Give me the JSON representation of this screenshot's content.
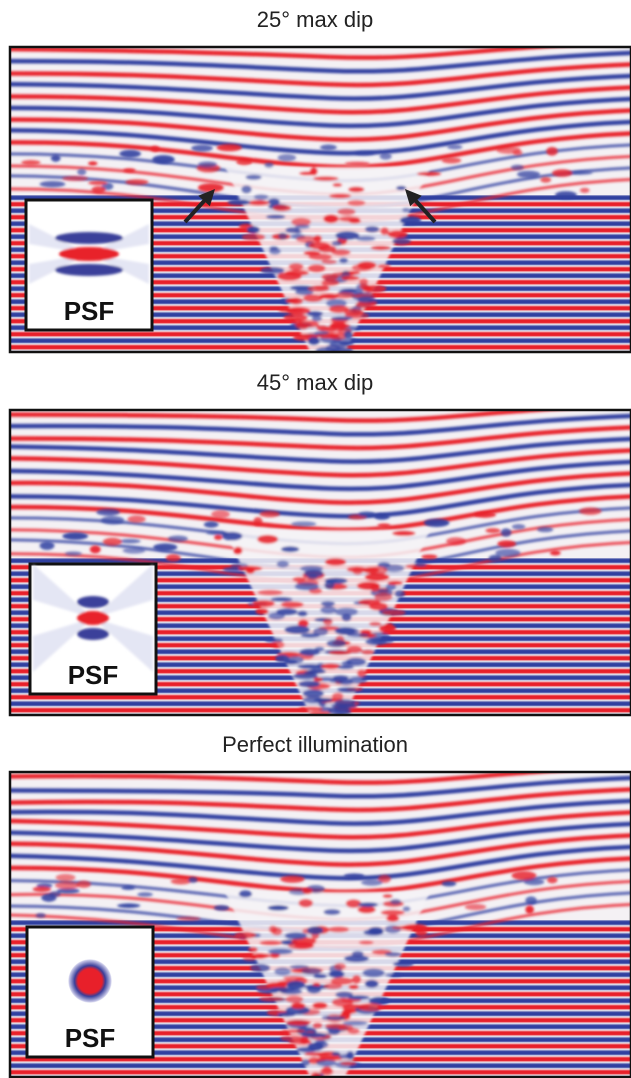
{
  "panels": [
    {
      "title": "25° max dip",
      "inset_label": "PSF"
    },
    {
      "title": "45° max dip",
      "inset_label": "PSF"
    },
    {
      "title": "Perfect illumination",
      "inset_label": "PSF"
    }
  ]
}
